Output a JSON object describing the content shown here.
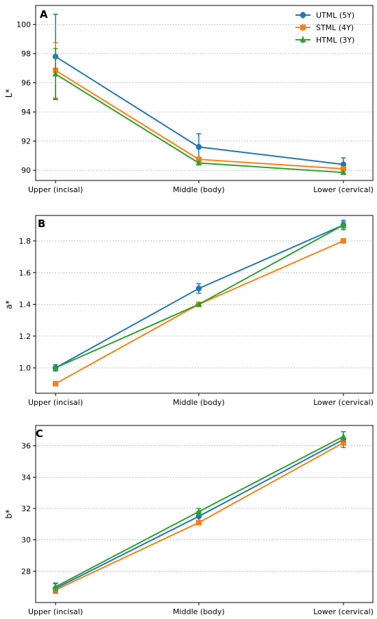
{
  "chart_data": [
    {
      "type": "line",
      "panel_label": "A",
      "title": "",
      "ylabel": "L*",
      "xlabel": "",
      "categories": [
        "Upper (incisal)",
        "Middle (body)",
        "Lower (cervical)"
      ],
      "ylim": [
        89.3,
        101.3
      ],
      "yticks": [
        90,
        92,
        94,
        96,
        98,
        100
      ],
      "grid": "y-dotted",
      "legend": "top-right",
      "series": [
        {
          "name": "UTML (5Y)",
          "color": "#1f77b4",
          "marker": "circle",
          "values": [
            97.8,
            91.6,
            90.4
          ],
          "errors": [
            2.9,
            0.9,
            0.45
          ]
        },
        {
          "name": "STML (4Y)",
          "color": "#ff7f0e",
          "marker": "square",
          "values": [
            96.85,
            90.75,
            90.1
          ],
          "errors": [
            1.9,
            0,
            0
          ]
        },
        {
          "name": "HTML (3Y)",
          "color": "#2ca02c",
          "marker": "triangle",
          "values": [
            96.6,
            90.5,
            89.85
          ],
          "errors": [
            1.75,
            0,
            0
          ]
        }
      ]
    },
    {
      "type": "line",
      "panel_label": "B",
      "title": "",
      "ylabel": "a*",
      "xlabel": "",
      "categories": [
        "Upper (incisal)",
        "Middle (body)",
        "Lower (cervical)"
      ],
      "ylim": [
        0.84,
        1.96
      ],
      "yticks": [
        1.0,
        1.2,
        1.4,
        1.6,
        1.8
      ],
      "grid": "y-dotted",
      "series": [
        {
          "name": "UTML (5Y)",
          "color": "#1f77b4",
          "marker": "circle",
          "values": [
            1.0,
            1.5,
            1.9
          ],
          "errors": [
            0.02,
            0.03,
            0.03
          ]
        },
        {
          "name": "STML (4Y)",
          "color": "#ff7f0e",
          "marker": "square",
          "values": [
            0.9,
            1.4,
            1.8
          ],
          "errors": [
            0,
            0,
            0
          ]
        },
        {
          "name": "HTML (3Y)",
          "color": "#2ca02c",
          "marker": "triangle",
          "values": [
            1.0,
            1.4,
            1.9
          ],
          "errors": [
            0,
            0,
            0.02
          ]
        }
      ]
    },
    {
      "type": "line",
      "panel_label": "C",
      "title": "",
      "ylabel": "b*",
      "xlabel": "",
      "categories": [
        "Upper (incisal)",
        "Middle (body)",
        "Lower (cervical)"
      ],
      "ylim": [
        26.0,
        37.3
      ],
      "yticks": [
        28,
        30,
        32,
        34,
        36
      ],
      "grid": "y-dotted",
      "series": [
        {
          "name": "UTML (5Y)",
          "color": "#1f77b4",
          "marker": "circle",
          "values": [
            26.9,
            31.5,
            36.4
          ],
          "errors": [
            0.3,
            0.3,
            0.5
          ]
        },
        {
          "name": "STML (4Y)",
          "color": "#ff7f0e",
          "marker": "square",
          "values": [
            26.8,
            31.1,
            36.2
          ],
          "errors": [
            0,
            0,
            0
          ]
        },
        {
          "name": "HTML (3Y)",
          "color": "#2ca02c",
          "marker": "triangle",
          "values": [
            27.0,
            31.8,
            36.6
          ],
          "errors": [
            0.25,
            0.2,
            0.3
          ]
        }
      ]
    }
  ]
}
